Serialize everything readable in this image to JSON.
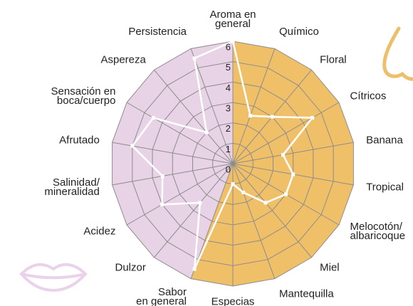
{
  "chart_data": {
    "type": "radar",
    "categories": [
      "Aroma en\ngeneral",
      "Químico",
      "Floral",
      "Cítricos",
      "Banana",
      "Tropical",
      "Melocotón/\nalbaricoque",
      "Miel",
      "Mantequilla",
      "Especias",
      "Sabor\nen general",
      "Dulzor",
      "Acidez",
      "Salinidad/\nmineralidad",
      "Afrutado",
      "Sensación en\nboca/cuerpo",
      "Aspereza",
      "Persistencia"
    ],
    "series": [
      {
        "color": "#ffffff",
        "values": [
          6,
          2.5,
          3,
          4.5,
          2.5,
          3,
          3,
          2.5,
          1.5,
          1,
          5.5,
          2.5,
          4,
          3.5,
          5,
          4.5,
          2,
          5.5
        ]
      }
    ],
    "ylim": [
      0,
      6
    ],
    "yticks": [
      0,
      1,
      2,
      3,
      4,
      5,
      6
    ],
    "sector_colors": [
      "#f0c069",
      "#e8d2e6"
    ]
  }
}
